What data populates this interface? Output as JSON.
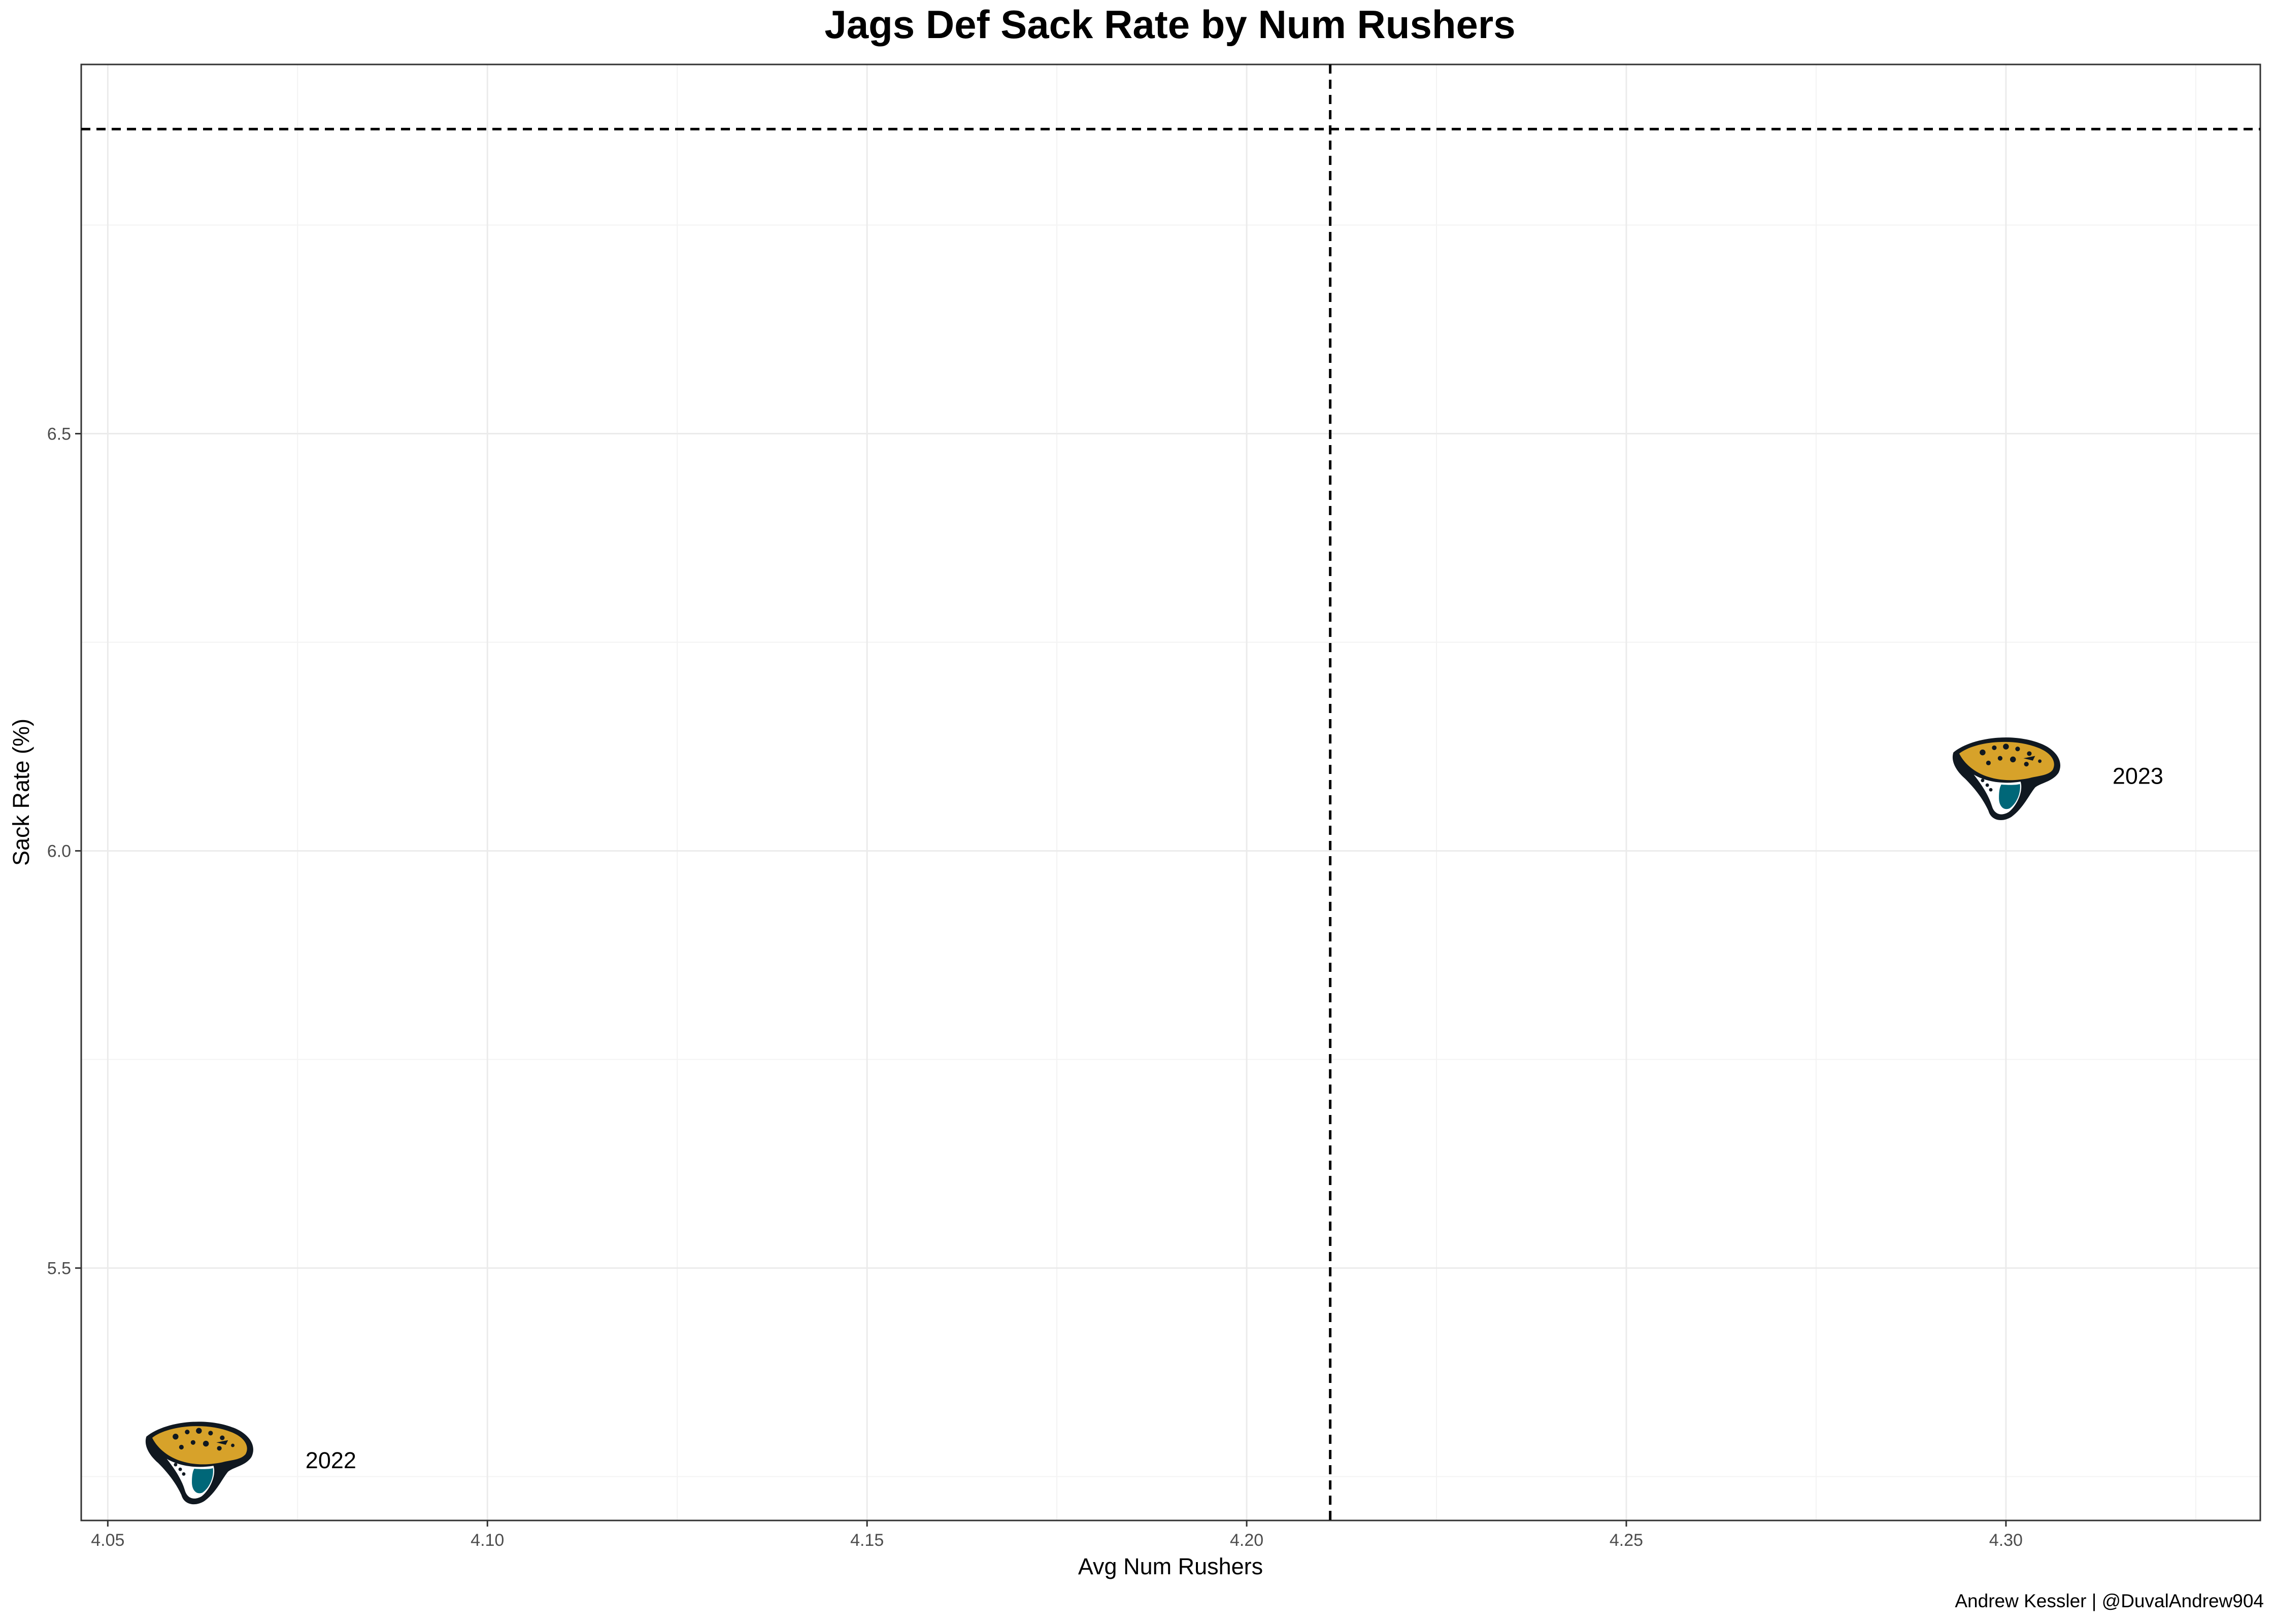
{
  "chart_data": {
    "type": "scatter",
    "title": "Jags Def Sack Rate by Num Rushers",
    "xlabel": "Avg Num Rushers",
    "ylabel": "Sack Rate (%)",
    "caption": "Andrew Kessler | @DuvalAndrew904",
    "xlim": [
      4.0465,
      4.3335
    ],
    "ylim": [
      5.1975,
      6.9425
    ],
    "x_ticks": [
      4.05,
      4.1,
      4.15,
      4.2,
      4.25,
      4.3
    ],
    "x_tick_labels": [
      "4.05",
      "4.10",
      "4.15",
      "4.20",
      "4.25",
      "4.30"
    ],
    "y_ticks": [
      5.5,
      6.0,
      6.5
    ],
    "y_tick_labels": [
      "5.5",
      "6.0",
      "6.5"
    ],
    "grid": true,
    "marker": "jaguar-logo-icon",
    "points": [
      {
        "x": 4.062,
        "y": 5.27,
        "label": "2022"
      },
      {
        "x": 4.3,
        "y": 6.09,
        "label": "2023"
      }
    ],
    "reference_lines": {
      "vertical_x": 4.211,
      "horizontal_y": 6.865
    },
    "colors": {
      "logo_gold": "#D7A22A",
      "logo_teal": "#006778",
      "logo_black": "#101820",
      "logo_white": "#FFFFFF",
      "grid": "#EBEBEB",
      "panel_border": "#333333"
    }
  }
}
